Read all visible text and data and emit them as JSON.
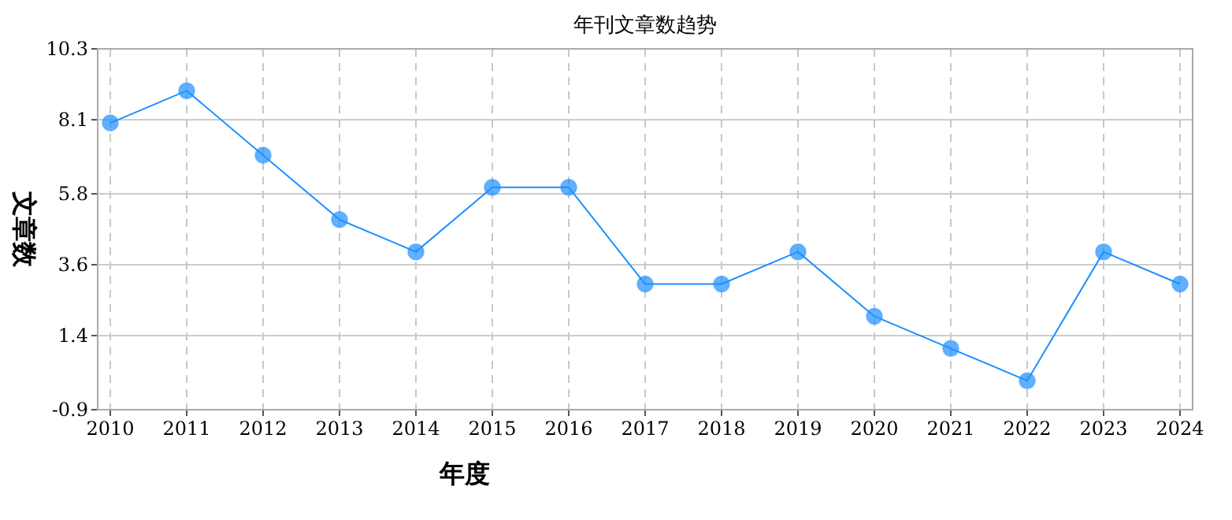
{
  "chart_data": {
    "type": "line",
    "title": "年刊文章数趋势",
    "xlabel": "年度",
    "ylabel": "文章数",
    "categories": [
      "2010",
      "2011",
      "2012",
      "2013",
      "2014",
      "2015",
      "2016",
      "2017",
      "2018",
      "2019",
      "2020",
      "2021",
      "2022",
      "2023",
      "2024"
    ],
    "series": [
      {
        "color": "#1e90ff",
        "values": [
          8,
          9,
          7,
          5,
          4,
          6,
          6,
          3,
          3,
          4,
          2,
          1,
          0,
          4,
          3
        ]
      }
    ],
    "ylim": [
      -0.9,
      10.3
    ],
    "yticks": [
      -0.9,
      1.4,
      3.6,
      5.8,
      8.1,
      10.3
    ],
    "grid": true,
    "marker": "circle",
    "line_style": "solid"
  }
}
